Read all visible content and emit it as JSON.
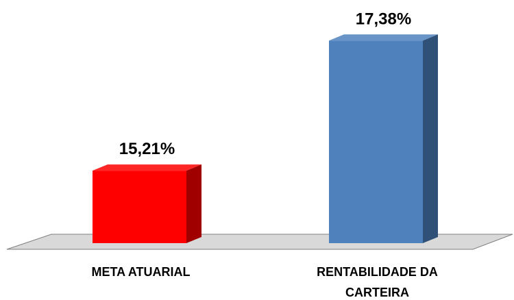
{
  "chart_data": {
    "type": "bar3d",
    "categories": [
      "META ATUARIAL",
      "RENTABILIDADE DA CARTEIRA"
    ],
    "values": [
      15.21,
      17.38
    ],
    "value_labels": [
      "15,21%",
      "17,38%"
    ],
    "colors": [
      "#ff0000",
      "#4f81bd"
    ],
    "side_colors": [
      "#a00000",
      "#2f5077"
    ],
    "ylim": [
      14,
      18
    ]
  }
}
